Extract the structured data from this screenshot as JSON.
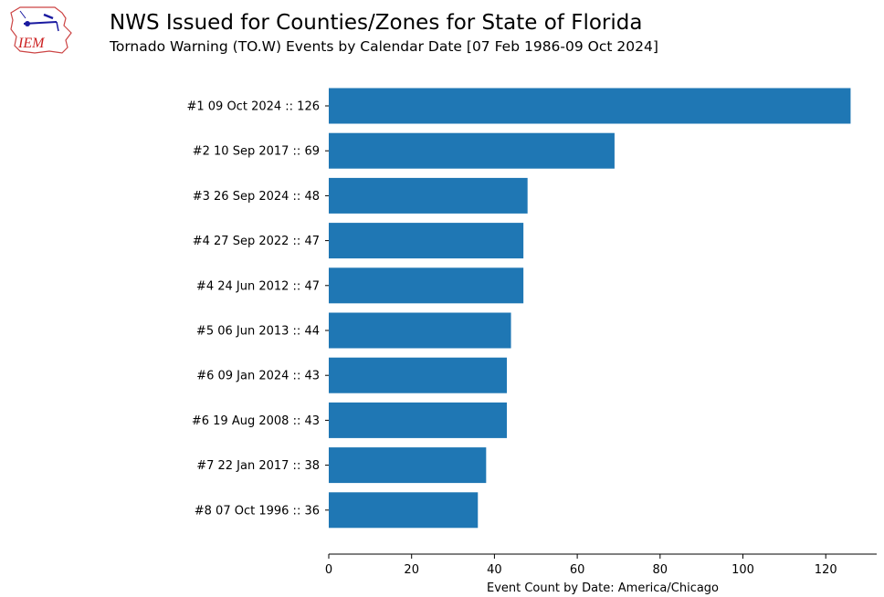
{
  "header": {
    "title": "NWS Issued for Counties/Zones for State of Florida",
    "subtitle": "Tornado Warning (TO.W) Events by Calendar Date [07 Feb 1986-09 Oct 2024]",
    "logo_text": "IEM"
  },
  "chart_data": {
    "type": "bar",
    "orientation": "horizontal",
    "categories": [
      "#1  09 Oct 2024 :: 126",
      "#2  10 Sep 2017 :: 69",
      "#3  26 Sep 2024 :: 48",
      "#4  27 Sep 2022 :: 47",
      "#4  24 Jun 2012 :: 47",
      "#5  06 Jun 2013 :: 44",
      "#6  09 Jan 2024 :: 43",
      "#6  19 Aug 2008 :: 43",
      "#7  22 Jan 2017 :: 38",
      "#8  07 Oct 1996 :: 36"
    ],
    "values": [
      126,
      69,
      48,
      47,
      47,
      44,
      43,
      43,
      38,
      36
    ],
    "xlabel": "Event Count by Date: America/Chicago",
    "ylabel": "",
    "xlim": [
      0,
      132.3
    ],
    "xticks": [
      0,
      20,
      40,
      60,
      80,
      100,
      120
    ],
    "grid": false,
    "bar_color": "#1f77b4"
  }
}
